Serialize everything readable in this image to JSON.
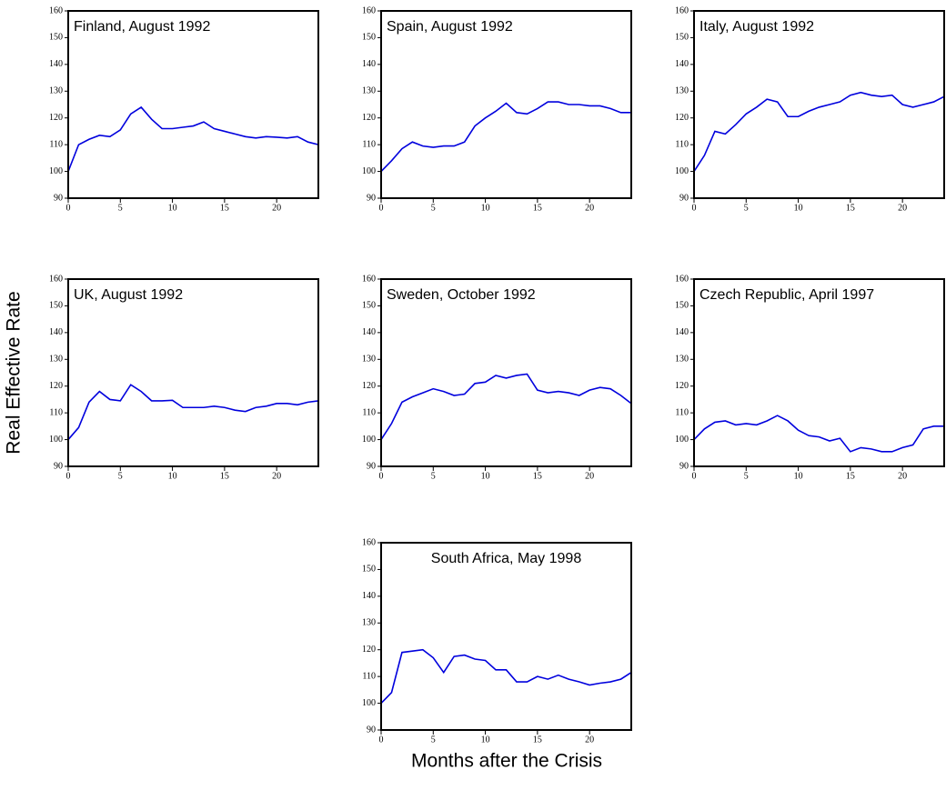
{
  "ylabel": "Real Effective Rate",
  "xlabel": "Months after the Crisis",
  "chart_data": [
    {
      "type": "line",
      "title": "Finland, August 1992",
      "color": "#0000dd",
      "x": [
        0,
        1,
        2,
        3,
        4,
        5,
        6,
        7,
        8,
        9,
        10,
        11,
        12,
        13,
        14,
        15,
        16,
        17,
        18,
        19,
        20,
        21,
        22,
        23,
        24
      ],
      "values": [
        100,
        110,
        112,
        113.5,
        113,
        115.5,
        121.5,
        124,
        119.5,
        116,
        116,
        116.5,
        117,
        118.5,
        116,
        115,
        114,
        113,
        112.5,
        113,
        112.8,
        112.5,
        113,
        111,
        110
      ],
      "xlim": [
        0,
        24
      ],
      "xticks": [
        0,
        5,
        10,
        15,
        20
      ],
      "ylim": [
        90,
        160
      ],
      "yticks": [
        90,
        100,
        110,
        120,
        130,
        140,
        150,
        160
      ]
    },
    {
      "type": "line",
      "title": "Spain, August 1992",
      "color": "#0000dd",
      "x": [
        0,
        1,
        2,
        3,
        4,
        5,
        6,
        7,
        8,
        9,
        10,
        11,
        12,
        13,
        14,
        15,
        16,
        17,
        18,
        19,
        20,
        21,
        22,
        23,
        24
      ],
      "values": [
        100,
        104,
        108.5,
        111,
        109.5,
        109,
        109.5,
        109.5,
        111,
        117,
        120,
        122.5,
        125.5,
        122,
        121.5,
        123.5,
        126,
        126,
        125,
        125,
        124.5,
        124.5,
        123.5,
        122,
        122
      ],
      "xlim": [
        0,
        24
      ],
      "xticks": [
        0,
        5,
        10,
        15,
        20
      ],
      "ylim": [
        90,
        160
      ],
      "yticks": [
        90,
        100,
        110,
        120,
        130,
        140,
        150,
        160
      ]
    },
    {
      "type": "line",
      "title": "Italy, August 1992",
      "color": "#0000dd",
      "x": [
        0,
        1,
        2,
        3,
        4,
        5,
        6,
        7,
        8,
        9,
        10,
        11,
        12,
        13,
        14,
        15,
        16,
        17,
        18,
        19,
        20,
        21,
        22,
        23,
        24
      ],
      "values": [
        100,
        106,
        115,
        114,
        117.5,
        121.5,
        124,
        127,
        126,
        120.5,
        120.5,
        122.5,
        124,
        125,
        126,
        128.5,
        129.5,
        128.5,
        128,
        128.5,
        125,
        124,
        125,
        126,
        128
      ],
      "xlim": [
        0,
        24
      ],
      "xticks": [
        0,
        5,
        10,
        15,
        20
      ],
      "ylim": [
        90,
        160
      ],
      "yticks": [
        90,
        100,
        110,
        120,
        130,
        140,
        150,
        160
      ]
    },
    {
      "type": "line",
      "title": "UK, August 1992",
      "color": "#0000dd",
      "x": [
        0,
        1,
        2,
        3,
        4,
        5,
        6,
        7,
        8,
        9,
        10,
        11,
        12,
        13,
        14,
        15,
        16,
        17,
        18,
        19,
        20,
        21,
        22,
        23,
        24
      ],
      "values": [
        100,
        104.5,
        114,
        118,
        115,
        114.5,
        120.5,
        118,
        114.5,
        114.5,
        114.7,
        112,
        112,
        112,
        112.5,
        112,
        111,
        110.5,
        112,
        112.5,
        113.5,
        113.5,
        113,
        114,
        114.5
      ],
      "xlim": [
        0,
        24
      ],
      "xticks": [
        0,
        5,
        10,
        15,
        20
      ],
      "ylim": [
        90,
        160
      ],
      "yticks": [
        90,
        100,
        110,
        120,
        130,
        140,
        150,
        160
      ]
    },
    {
      "type": "line",
      "title": "Sweden, October 1992",
      "color": "#0000dd",
      "x": [
        0,
        1,
        2,
        3,
        4,
        5,
        6,
        7,
        8,
        9,
        10,
        11,
        12,
        13,
        14,
        15,
        16,
        17,
        18,
        19,
        20,
        21,
        22,
        23,
        24
      ],
      "values": [
        100,
        106,
        114,
        116,
        117.5,
        119,
        118,
        116.5,
        117,
        121,
        121.5,
        124,
        123,
        124,
        124.5,
        118.5,
        117.5,
        118,
        117.5,
        116.5,
        118.5,
        119.5,
        119,
        116.5,
        113.5
      ],
      "xlim": [
        0,
        24
      ],
      "xticks": [
        0,
        5,
        10,
        15,
        20
      ],
      "ylim": [
        90,
        160
      ],
      "yticks": [
        90,
        100,
        110,
        120,
        130,
        140,
        150,
        160
      ]
    },
    {
      "type": "line",
      "title": "Czech Republic, April 1997",
      "color": "#0000dd",
      "x": [
        0,
        1,
        2,
        3,
        4,
        5,
        6,
        7,
        8,
        9,
        10,
        11,
        12,
        13,
        14,
        15,
        16,
        17,
        18,
        19,
        20,
        21,
        22,
        23,
        24
      ],
      "values": [
        100,
        104,
        106.5,
        107,
        105.5,
        106,
        105.5,
        107,
        109,
        107,
        103.5,
        101.5,
        101,
        99.5,
        100.5,
        95.5,
        97,
        96.5,
        95.5,
        95.5,
        97,
        98,
        104,
        105,
        105
      ],
      "xlim": [
        0,
        24
      ],
      "xticks": [
        0,
        5,
        10,
        15,
        20
      ],
      "ylim": [
        90,
        160
      ],
      "yticks": [
        90,
        100,
        110,
        120,
        130,
        140,
        150,
        160
      ]
    },
    {
      "type": "line",
      "title": "South Africa, May 1998",
      "color": "#0000dd",
      "x": [
        0,
        1,
        2,
        3,
        4,
        5,
        6,
        7,
        8,
        9,
        10,
        11,
        12,
        13,
        14,
        15,
        16,
        17,
        18,
        19,
        20,
        21,
        22,
        23,
        24
      ],
      "values": [
        100,
        104,
        119,
        119.5,
        120,
        117,
        111.5,
        117.5,
        118,
        116.5,
        116,
        112.5,
        112.5,
        108,
        108,
        110,
        109,
        110.5,
        109,
        108,
        106.8,
        107.5,
        108,
        109,
        111.5
      ],
      "xlim": [
        0,
        24
      ],
      "xticks": [
        0,
        5,
        10,
        15,
        20
      ],
      "ylim": [
        90,
        160
      ],
      "yticks": [
        90,
        100,
        110,
        120,
        130,
        140,
        150,
        160
      ]
    }
  ]
}
